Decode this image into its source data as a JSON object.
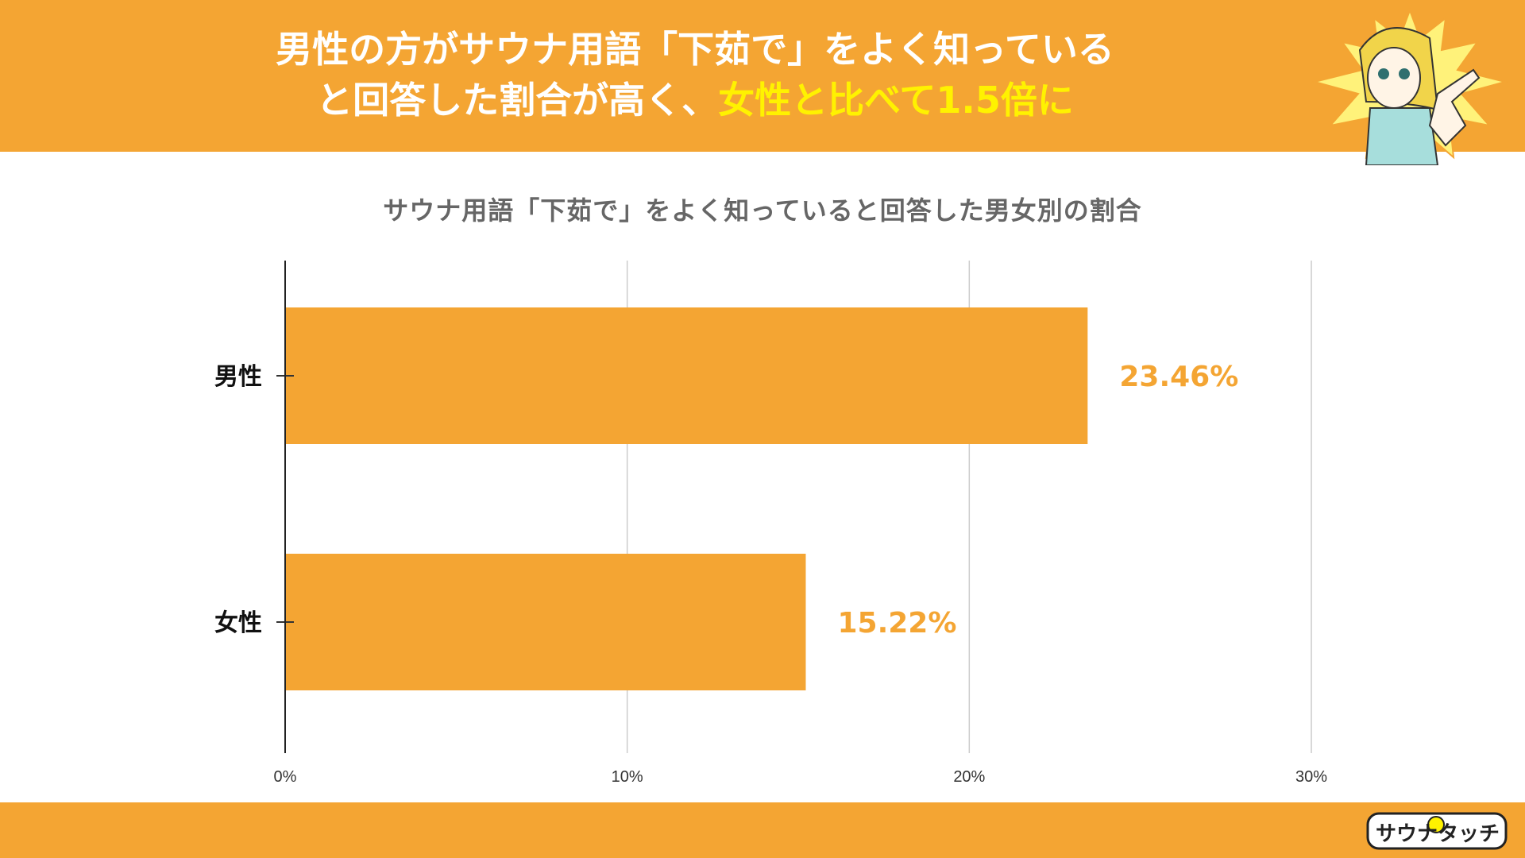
{
  "header": {
    "line1": "男性の方がサウナ用語「下茹で」をよく知っている",
    "line2_white": "と回答した割合が高く、",
    "line2_yellow": "女性と比べて1.5倍に"
  },
  "colors": {
    "brand": "#f4a533",
    "bar": "#f4a533",
    "value_label": "#f4a533",
    "headline_accent": "#fff200",
    "header_text": "#ffffff",
    "title_text": "#666666",
    "grid": "#cccccc"
  },
  "chart_data": {
    "type": "bar",
    "orientation": "horizontal",
    "title": "サウナ用語「下茹で」をよく知っていると回答した男女別の割合",
    "categories": [
      "男性",
      "女性"
    ],
    "values": [
      23.46,
      15.22
    ],
    "value_labels": [
      "23.46%",
      "15.22%"
    ],
    "xlim": [
      0,
      30
    ],
    "xticks": [
      0,
      10,
      20,
      30
    ],
    "xtick_labels": [
      "0%",
      "10%",
      "20%",
      "30%"
    ],
    "xlabel": "",
    "ylabel": "",
    "grid": "vertical",
    "legend": "none"
  },
  "branding": {
    "mascot": "pointing-girl-mascot-icon",
    "logo_icon": "sauna-touch-logo-icon",
    "logo_text": "サウナタッチ"
  }
}
